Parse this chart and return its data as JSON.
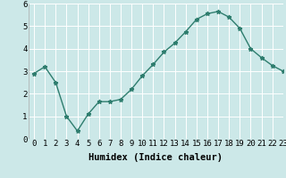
{
  "x": [
    0,
    1,
    2,
    3,
    4,
    5,
    6,
    7,
    8,
    9,
    10,
    11,
    12,
    13,
    14,
    15,
    16,
    17,
    18,
    19,
    20,
    21,
    22,
    23
  ],
  "y": [
    2.9,
    3.2,
    2.5,
    1.0,
    0.35,
    1.1,
    1.65,
    1.65,
    1.75,
    2.2,
    2.8,
    3.3,
    3.85,
    4.25,
    4.75,
    5.3,
    5.55,
    5.65,
    5.4,
    4.9,
    4.0,
    3.6,
    3.25,
    3.0
  ],
  "xlabel": "Humidex (Indice chaleur)",
  "ylim": [
    0,
    6
  ],
  "xlim": [
    -0.5,
    23
  ],
  "yticks": [
    0,
    1,
    2,
    3,
    4,
    5,
    6
  ],
  "xticks": [
    0,
    1,
    2,
    3,
    4,
    5,
    6,
    7,
    8,
    9,
    10,
    11,
    12,
    13,
    14,
    15,
    16,
    17,
    18,
    19,
    20,
    21,
    22,
    23
  ],
  "line_color": "#2e7d6e",
  "marker": "*",
  "marker_size": 3.5,
  "bg_color": "#cce8e8",
  "grid_color": "#ffffff",
  "xlabel_fontsize": 7.5,
  "tick_fontsize": 6.5,
  "line_width": 1.0
}
